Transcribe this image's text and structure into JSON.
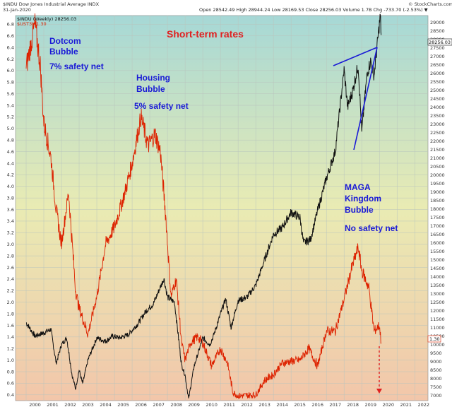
{
  "header": {
    "symbol_line": "$INDU Dow Jones Industrial Average INDX",
    "date": "31-Jan-2020",
    "watermark": "© StockCharts.com",
    "ohlc": "Open 28542.49  High 28944.24  Low 28169.53  Close 28256.03  Volume 1.7B  Chg -733.70 (-2.53%) ▼",
    "legend_indu": "$INDU (Weekly) 28256.03",
    "legend_ust": "$UST3Y 1.30"
  },
  "annotations": {
    "title": "Short-term rates",
    "dotcom": [
      "Dotcom",
      "Bubble"
    ],
    "dotcom_net": "7% safety net",
    "housing": [
      "Housing",
      "Bubble"
    ],
    "housing_net": "5% safety net",
    "maga": [
      "MAGA",
      "Kingdom",
      "Bubble"
    ],
    "maga_net": "No safety net"
  },
  "colors": {
    "indu": "#111111",
    "ust": "#dd2200",
    "annotation_blue": "#1a1ad6",
    "annotation_red": "#e02020",
    "bg_top": "#a6d8d6",
    "bg_mid": "#e9ebb3",
    "bg_bottom": "#f2c6aa"
  },
  "chart_data": {
    "type": "line",
    "x_ticks": [
      "2000",
      "2001",
      "2002",
      "2003",
      "2004",
      "2005",
      "2006",
      "2007",
      "2008",
      "2009",
      "2010",
      "2011",
      "2012",
      "2013",
      "2014",
      "2015",
      "2016",
      "2017",
      "2018",
      "2019",
      "2020",
      "2021",
      "2022"
    ],
    "left_axis": {
      "label": "$UST3Y (%)",
      "range": [
        0.3,
        6.95
      ],
      "ticks": [
        "0.4",
        "0.6",
        "0.8",
        "1.0",
        "1.2",
        "1.4",
        "1.6",
        "1.8",
        "2.0",
        "2.2",
        "2.4",
        "2.6",
        "2.8",
        "3.0",
        "3.2",
        "3.4",
        "3.6",
        "3.8",
        "4.0",
        "4.2",
        "4.4",
        "4.6",
        "4.8",
        "5.0",
        "5.2",
        "5.4",
        "5.6",
        "5.8",
        "6.0",
        "6.2",
        "6.4",
        "6.6",
        "6.8"
      ]
    },
    "right_axis": {
      "label": "$INDU",
      "range": [
        6700,
        29400
      ],
      "ticks": [
        "7000",
        "7500",
        "8000",
        "8500",
        "9000",
        "9500",
        "10000",
        "10500",
        "11000",
        "11500",
        "12000",
        "12500",
        "13000",
        "13500",
        "14000",
        "14500",
        "15000",
        "15500",
        "16000",
        "16500",
        "17000",
        "17500",
        "18000",
        "18500",
        "19000",
        "19500",
        "20000",
        "20500",
        "21000",
        "21500",
        "22000",
        "22500",
        "23000",
        "23500",
        "24000",
        "24500",
        "25000",
        "25500",
        "26000",
        "26500",
        "27000",
        "27500",
        "28000",
        "28500",
        "29000"
      ]
    },
    "last_values": {
      "indu": "28256.03",
      "ust": "1.30"
    },
    "series": [
      {
        "name": "$INDU (Weekly)",
        "axis": "right",
        "points": [
          [
            2000,
            11300
          ],
          [
            2000.5,
            10500
          ],
          [
            2001,
            10700
          ],
          [
            2001.4,
            10900
          ],
          [
            2001.7,
            8900
          ],
          [
            2002,
            10000
          ],
          [
            2002.3,
            10400
          ],
          [
            2002.6,
            8200
          ],
          [
            2002.8,
            7400
          ],
          [
            2003,
            8500
          ],
          [
            2003.2,
            7700
          ],
          [
            2003.5,
            9100
          ],
          [
            2004,
            10400
          ],
          [
            2004.5,
            10200
          ],
          [
            2004.9,
            10500
          ],
          [
            2005.3,
            10400
          ],
          [
            2005.8,
            10600
          ],
          [
            2006.3,
            11200
          ],
          [
            2006.8,
            12000
          ],
          [
            2007.2,
            12400
          ],
          [
            2007.8,
            13900
          ],
          [
            2008,
            12800
          ],
          [
            2008.4,
            12500
          ],
          [
            2008.8,
            8800
          ],
          [
            2009,
            8200
          ],
          [
            2009.2,
            6800
          ],
          [
            2009.5,
            8700
          ],
          [
            2010,
            10400
          ],
          [
            2010.4,
            10000
          ],
          [
            2010.6,
            10500
          ],
          [
            2011,
            11800
          ],
          [
            2011.3,
            12700
          ],
          [
            2011.6,
            11000
          ],
          [
            2012,
            12600
          ],
          [
            2012.5,
            12800
          ],
          [
            2013,
            13500
          ],
          [
            2013.5,
            15000
          ],
          [
            2014,
            16500
          ],
          [
            2014.5,
            16900
          ],
          [
            2015,
            17800
          ],
          [
            2015.5,
            17500
          ],
          [
            2015.7,
            16000
          ],
          [
            2016.1,
            16200
          ],
          [
            2016.5,
            17900
          ],
          [
            2017,
            19800
          ],
          [
            2017.5,
            21400
          ],
          [
            2018,
            26200
          ],
          [
            2018.2,
            24000
          ],
          [
            2018.5,
            25000
          ],
          [
            2018.8,
            26500
          ],
          [
            2019,
            22500
          ],
          [
            2019.3,
            26000
          ],
          [
            2019.5,
            26700
          ],
          [
            2019.7,
            25900
          ],
          [
            2020,
            28900
          ],
          [
            2020.05,
            29400
          ],
          [
            2020.1,
            28256
          ]
        ]
      },
      {
        "name": "$UST3Y",
        "axis": "left",
        "points": [
          [
            2000,
            6.05
          ],
          [
            2000.3,
            6.5
          ],
          [
            2000.5,
            6.8
          ],
          [
            2000.8,
            6.1
          ],
          [
            2001,
            5.1
          ],
          [
            2001.4,
            4.5
          ],
          [
            2001.7,
            3.6
          ],
          [
            2002,
            3.0
          ],
          [
            2002.4,
            3.9
          ],
          [
            2002.8,
            2.2
          ],
          [
            2003,
            1.9
          ],
          [
            2003.5,
            1.45
          ],
          [
            2004,
            2.1
          ],
          [
            2004.5,
            3.0
          ],
          [
            2005,
            3.3
          ],
          [
            2005.6,
            3.9
          ],
          [
            2006,
            4.4
          ],
          [
            2006.5,
            5.2
          ],
          [
            2006.9,
            4.7
          ],
          [
            2007.3,
            4.9
          ],
          [
            2007.6,
            4.6
          ],
          [
            2007.9,
            3.5
          ],
          [
            2008.2,
            2.1
          ],
          [
            2008.5,
            2.4
          ],
          [
            2008.8,
            1.3
          ],
          [
            2009,
            1.0
          ],
          [
            2009.3,
            1.3
          ],
          [
            2009.7,
            1.4
          ],
          [
            2010,
            1.3
          ],
          [
            2010.5,
            0.9
          ],
          [
            2011,
            1.2
          ],
          [
            2011.4,
            0.95
          ],
          [
            2011.7,
            0.45
          ],
          [
            2012,
            0.38
          ],
          [
            2013,
            0.4
          ],
          [
            2013.5,
            0.65
          ],
          [
            2014,
            0.75
          ],
          [
            2014.5,
            0.95
          ],
          [
            2015,
            0.98
          ],
          [
            2015.5,
            1.0
          ],
          [
            2016,
            1.2
          ],
          [
            2016.5,
            0.9
          ],
          [
            2017,
            1.5
          ],
          [
            2017.5,
            1.5
          ],
          [
            2018,
            2.05
          ],
          [
            2018.4,
            2.55
          ],
          [
            2018.8,
            2.95
          ],
          [
            2019,
            2.55
          ],
          [
            2019.4,
            2.25
          ],
          [
            2019.7,
            1.5
          ],
          [
            2020,
            1.6
          ],
          [
            2020.1,
            1.3
          ]
        ]
      }
    ]
  }
}
